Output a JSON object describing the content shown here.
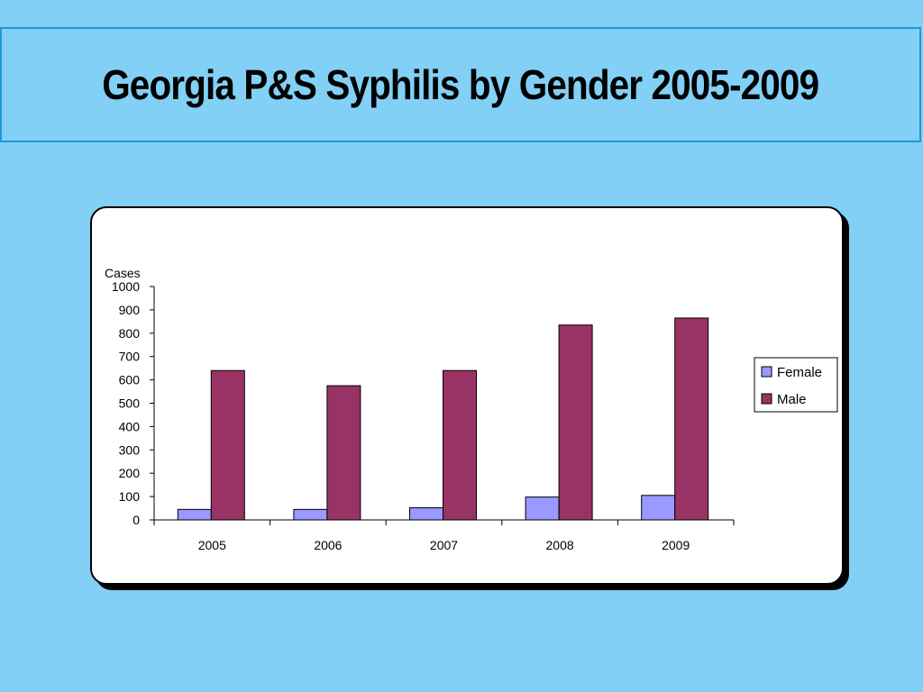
{
  "slide": {
    "title": "Georgia P&S Syphilis by Gender 2005-2009"
  },
  "chart_data": {
    "type": "bar",
    "categories": [
      "2005",
      "2006",
      "2007",
      "2008",
      "2009"
    ],
    "series": [
      {
        "name": "Female",
        "values": [
          45,
          45,
          52,
          98,
          105
        ],
        "color": "#9999ff"
      },
      {
        "name": "Male",
        "values": [
          640,
          575,
          640,
          835,
          865
        ],
        "color": "#993366"
      }
    ],
    "ylabel": "Cases",
    "xlabel": "",
    "ylim": [
      0,
      1000
    ],
    "yticks": [
      0,
      100,
      200,
      300,
      400,
      500,
      600,
      700,
      800,
      900,
      1000
    ],
    "grid": false,
    "legend_position": "right"
  }
}
